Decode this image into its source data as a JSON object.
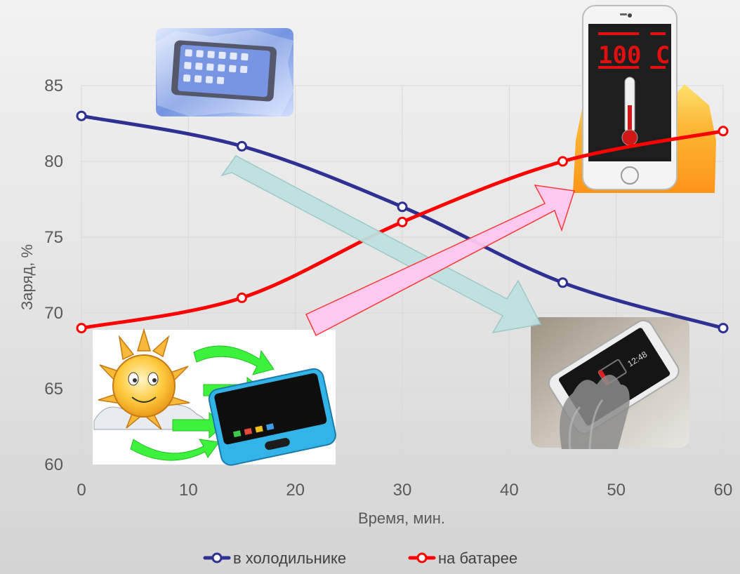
{
  "chart_data": {
    "type": "line",
    "title": "",
    "xlabel": "Время, мин.",
    "ylabel": "Заряд, %",
    "xlim": [
      0,
      60
    ],
    "ylim": [
      60,
      85
    ],
    "x_ticks": [
      0,
      10,
      20,
      30,
      40,
      50,
      60
    ],
    "y_ticks": [
      60,
      65,
      70,
      75,
      80,
      85
    ],
    "grid": true,
    "legend_position": "bottom",
    "x": [
      0,
      15,
      30,
      45,
      60
    ],
    "series": [
      {
        "name": "в холодильнике",
        "color": "#2e3192",
        "values": [
          83,
          81,
          77,
          72,
          69
        ]
      },
      {
        "name": "на батарее",
        "color": "#ff0000",
        "values": [
          69,
          71,
          76,
          80,
          82
        ]
      }
    ]
  },
  "illustrations": {
    "thermometer_display": "100 C",
    "phone_clock": "12:48",
    "icons": [
      "frozen-phone-icon",
      "hot-phone-thermometer-icon",
      "sun-phone-icon",
      "gloved-hand-phone-icon",
      "cooling-arrow-icon",
      "heating-arrow-icon"
    ]
  }
}
